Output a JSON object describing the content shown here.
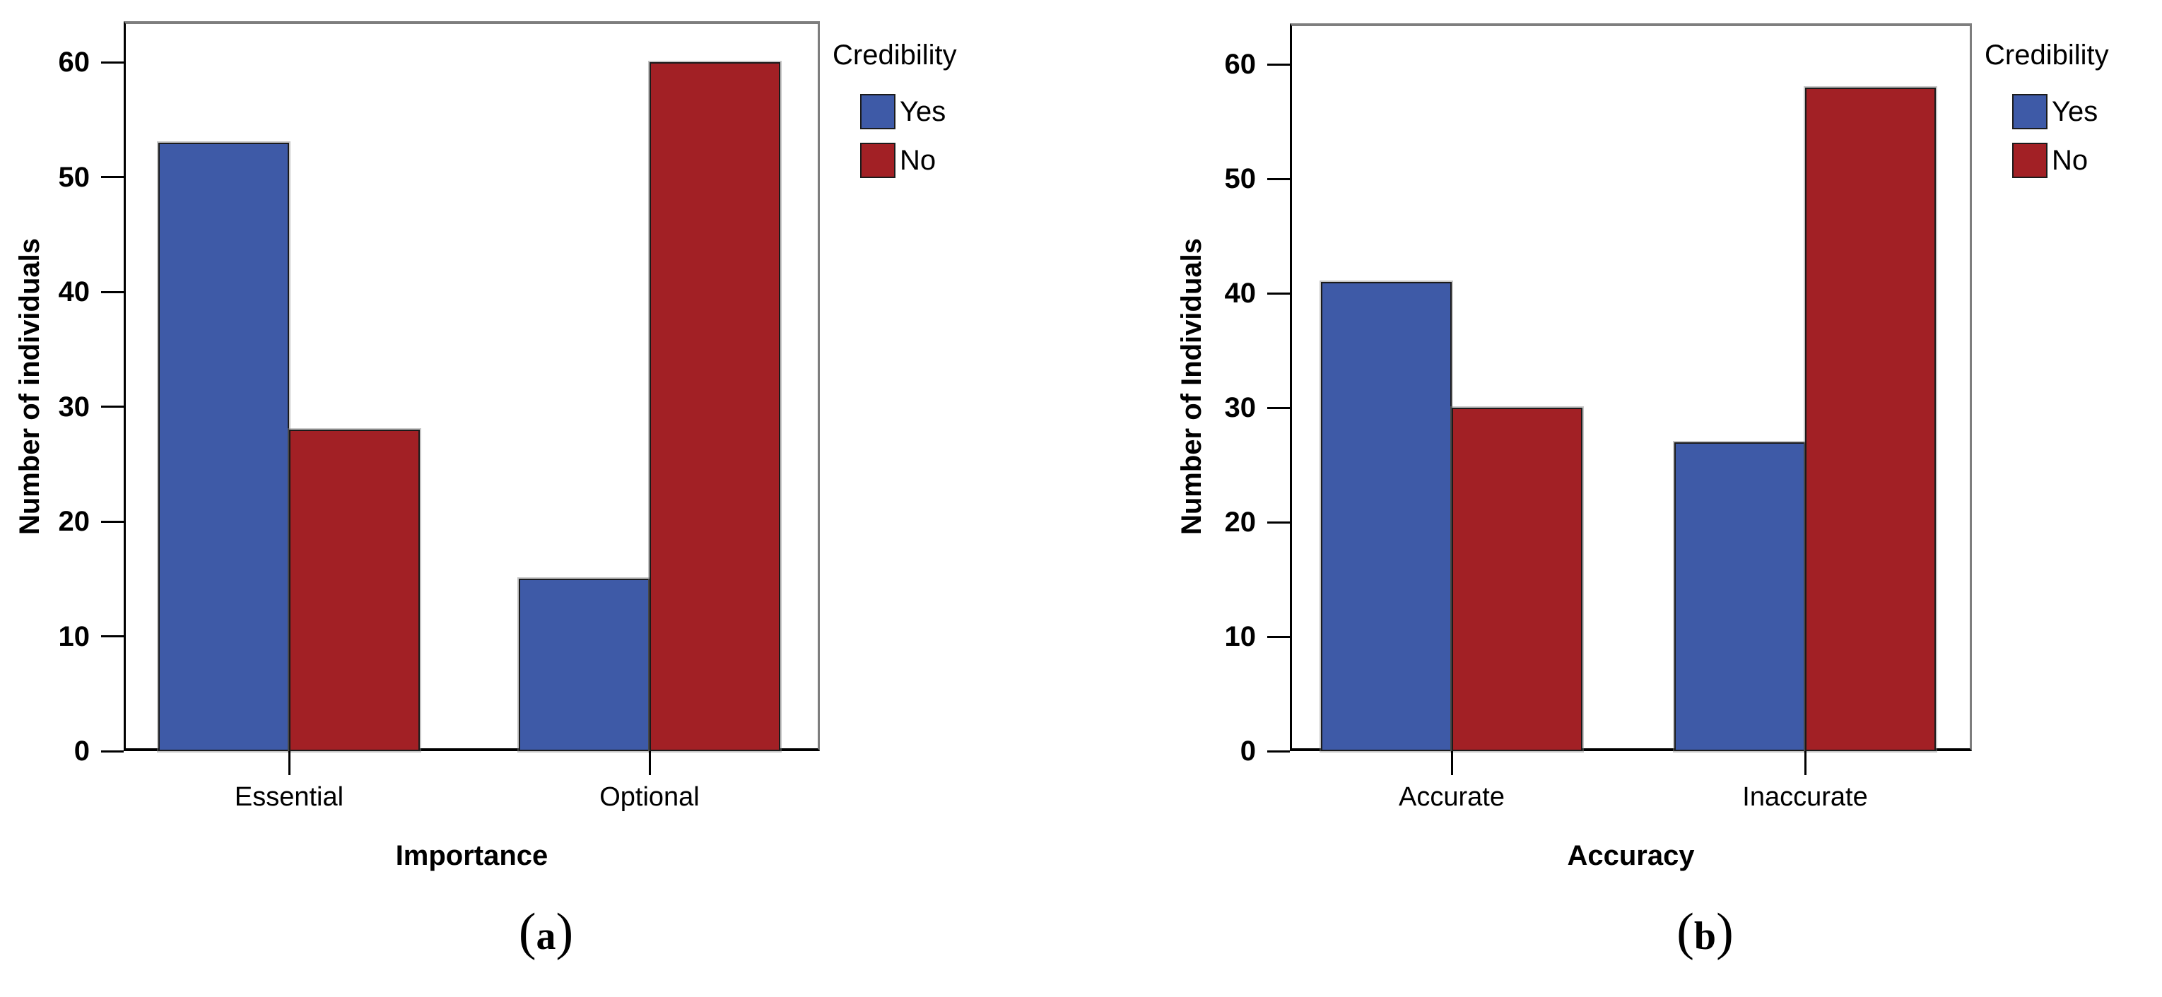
{
  "style": {
    "background": "#ffffff",
    "bar_border": "#1b1b1b",
    "frame_gray": "#7e7e7e",
    "axis_black": "#000000"
  },
  "chart_data": [
    {
      "type": "bar",
      "caption": "(a)",
      "ylabel": "Number of individuals",
      "xlabel": "Importance",
      "legend_title": "Credibility",
      "legend_position": "right-top",
      "grid": false,
      "categories": [
        "Essential",
        "Optional"
      ],
      "series": [
        {
          "name": "Yes",
          "color": "#3E5AA7",
          "values": [
            53,
            15
          ]
        },
        {
          "name": "No",
          "color": "#A22025",
          "values": [
            28,
            60
          ]
        }
      ],
      "yticks": [
        0,
        10,
        20,
        30,
        40,
        50,
        60
      ],
      "ylim": [
        0,
        63.6
      ]
    },
    {
      "type": "bar",
      "caption": "(b)",
      "ylabel": "Number of Individuals",
      "xlabel": "Accuracy",
      "legend_title": "Credibility",
      "legend_position": "right-top",
      "grid": false,
      "categories": [
        "Accurate",
        "Inaccurate"
      ],
      "series": [
        {
          "name": "Yes",
          "color": "#3E5AA7",
          "values": [
            41,
            27
          ]
        },
        {
          "name": "No",
          "color": "#A22025",
          "values": [
            30,
            58
          ]
        }
      ],
      "yticks": [
        0,
        10,
        20,
        30,
        40,
        50,
        60
      ],
      "ylim": [
        0,
        63.6
      ]
    }
  ]
}
